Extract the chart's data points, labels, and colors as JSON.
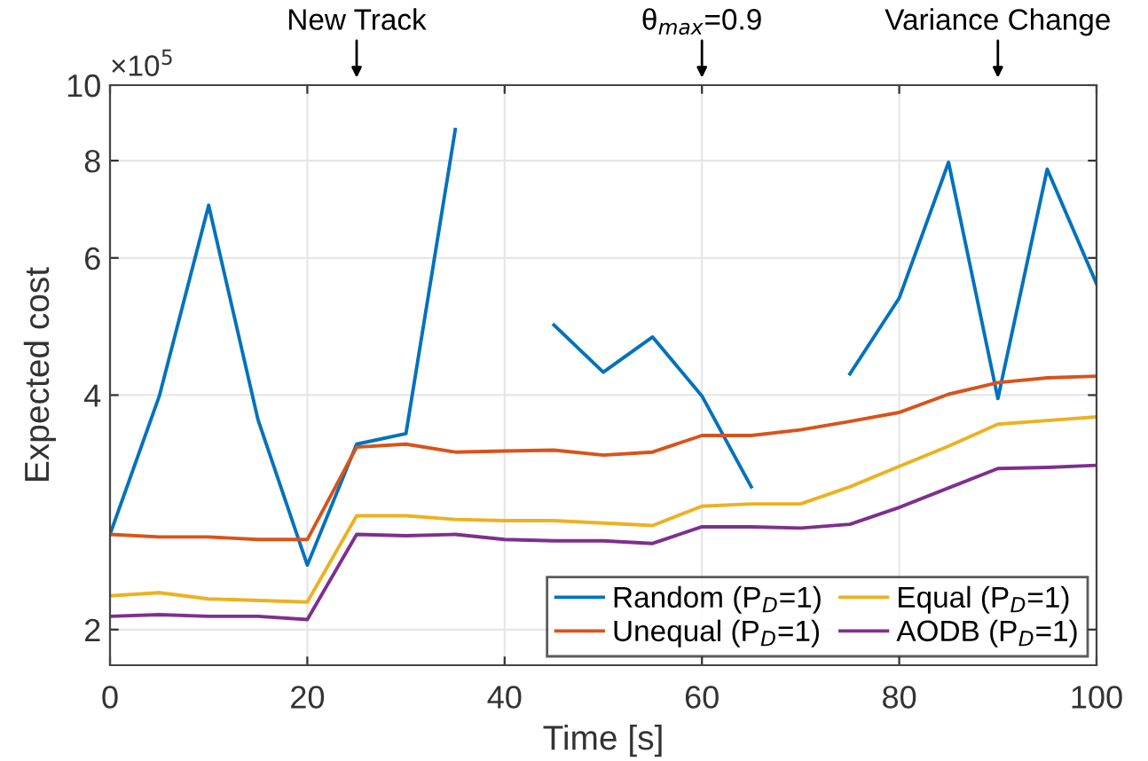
{
  "chart_data": {
    "type": "line",
    "xlabel": "Time [s]",
    "ylabel": "Expected cost",
    "x": [
      0,
      5,
      10,
      15,
      20,
      25,
      30,
      35,
      40,
      45,
      50,
      55,
      60,
      65,
      70,
      75,
      80,
      85,
      90,
      95,
      100
    ],
    "series": [
      {
        "name": "Random (P$_{D}$=1)",
        "color": "#0072bd",
        "values": [
          2.65,
          3.99,
          7.01,
          3.72,
          2.42,
          3.46,
          3.57,
          8.77,
          null,
          4.92,
          4.28,
          4.75,
          3.99,
          3.05,
          null,
          4.26,
          5.33,
          7.96,
          3.96,
          7.8,
          5.56
        ]
      },
      {
        "name": "Unequal (P$_{D}$=1)",
        "color": "#d95319",
        "values": [
          2.65,
          2.63,
          2.63,
          2.61,
          2.61,
          3.43,
          3.46,
          3.38,
          3.39,
          3.4,
          3.35,
          3.38,
          3.55,
          3.55,
          3.61,
          3.7,
          3.8,
          4.01,
          4.15,
          4.21,
          4.23
        ]
      },
      {
        "name": "Equal (P$_{D}$=1)",
        "color": "#edb120",
        "values": [
          2.21,
          2.23,
          2.19,
          2.18,
          2.17,
          2.8,
          2.8,
          2.77,
          2.76,
          2.76,
          2.74,
          2.72,
          2.88,
          2.9,
          2.9,
          3.05,
          3.24,
          3.44,
          3.67,
          3.71,
          3.75
        ]
      },
      {
        "name": "AODB (P$_{D}$=1)",
        "color": "#7e2f8e",
        "values": [
          2.08,
          2.09,
          2.08,
          2.08,
          2.06,
          2.65,
          2.64,
          2.65,
          2.61,
          2.6,
          2.6,
          2.58,
          2.71,
          2.71,
          2.7,
          2.73,
          2.87,
          3.04,
          3.22,
          3.23,
          3.25
        ]
      }
    ],
    "log": "y",
    "xlim": [
      0,
      100
    ],
    "xticks": [
      0,
      20,
      40,
      60,
      80,
      100
    ],
    "ylim": [
      1.8,
      10
    ],
    "yticks": [
      2,
      4,
      6,
      8,
      10
    ],
    "grid": true,
    "legend": "bottom right",
    "marker": "none",
    "line_style": "solid",
    "annotations": [
      "×10$^{5}$",
      "New Track",
      "θ$_{max}$=0.9",
      "Variance Change"
    ]
  }
}
